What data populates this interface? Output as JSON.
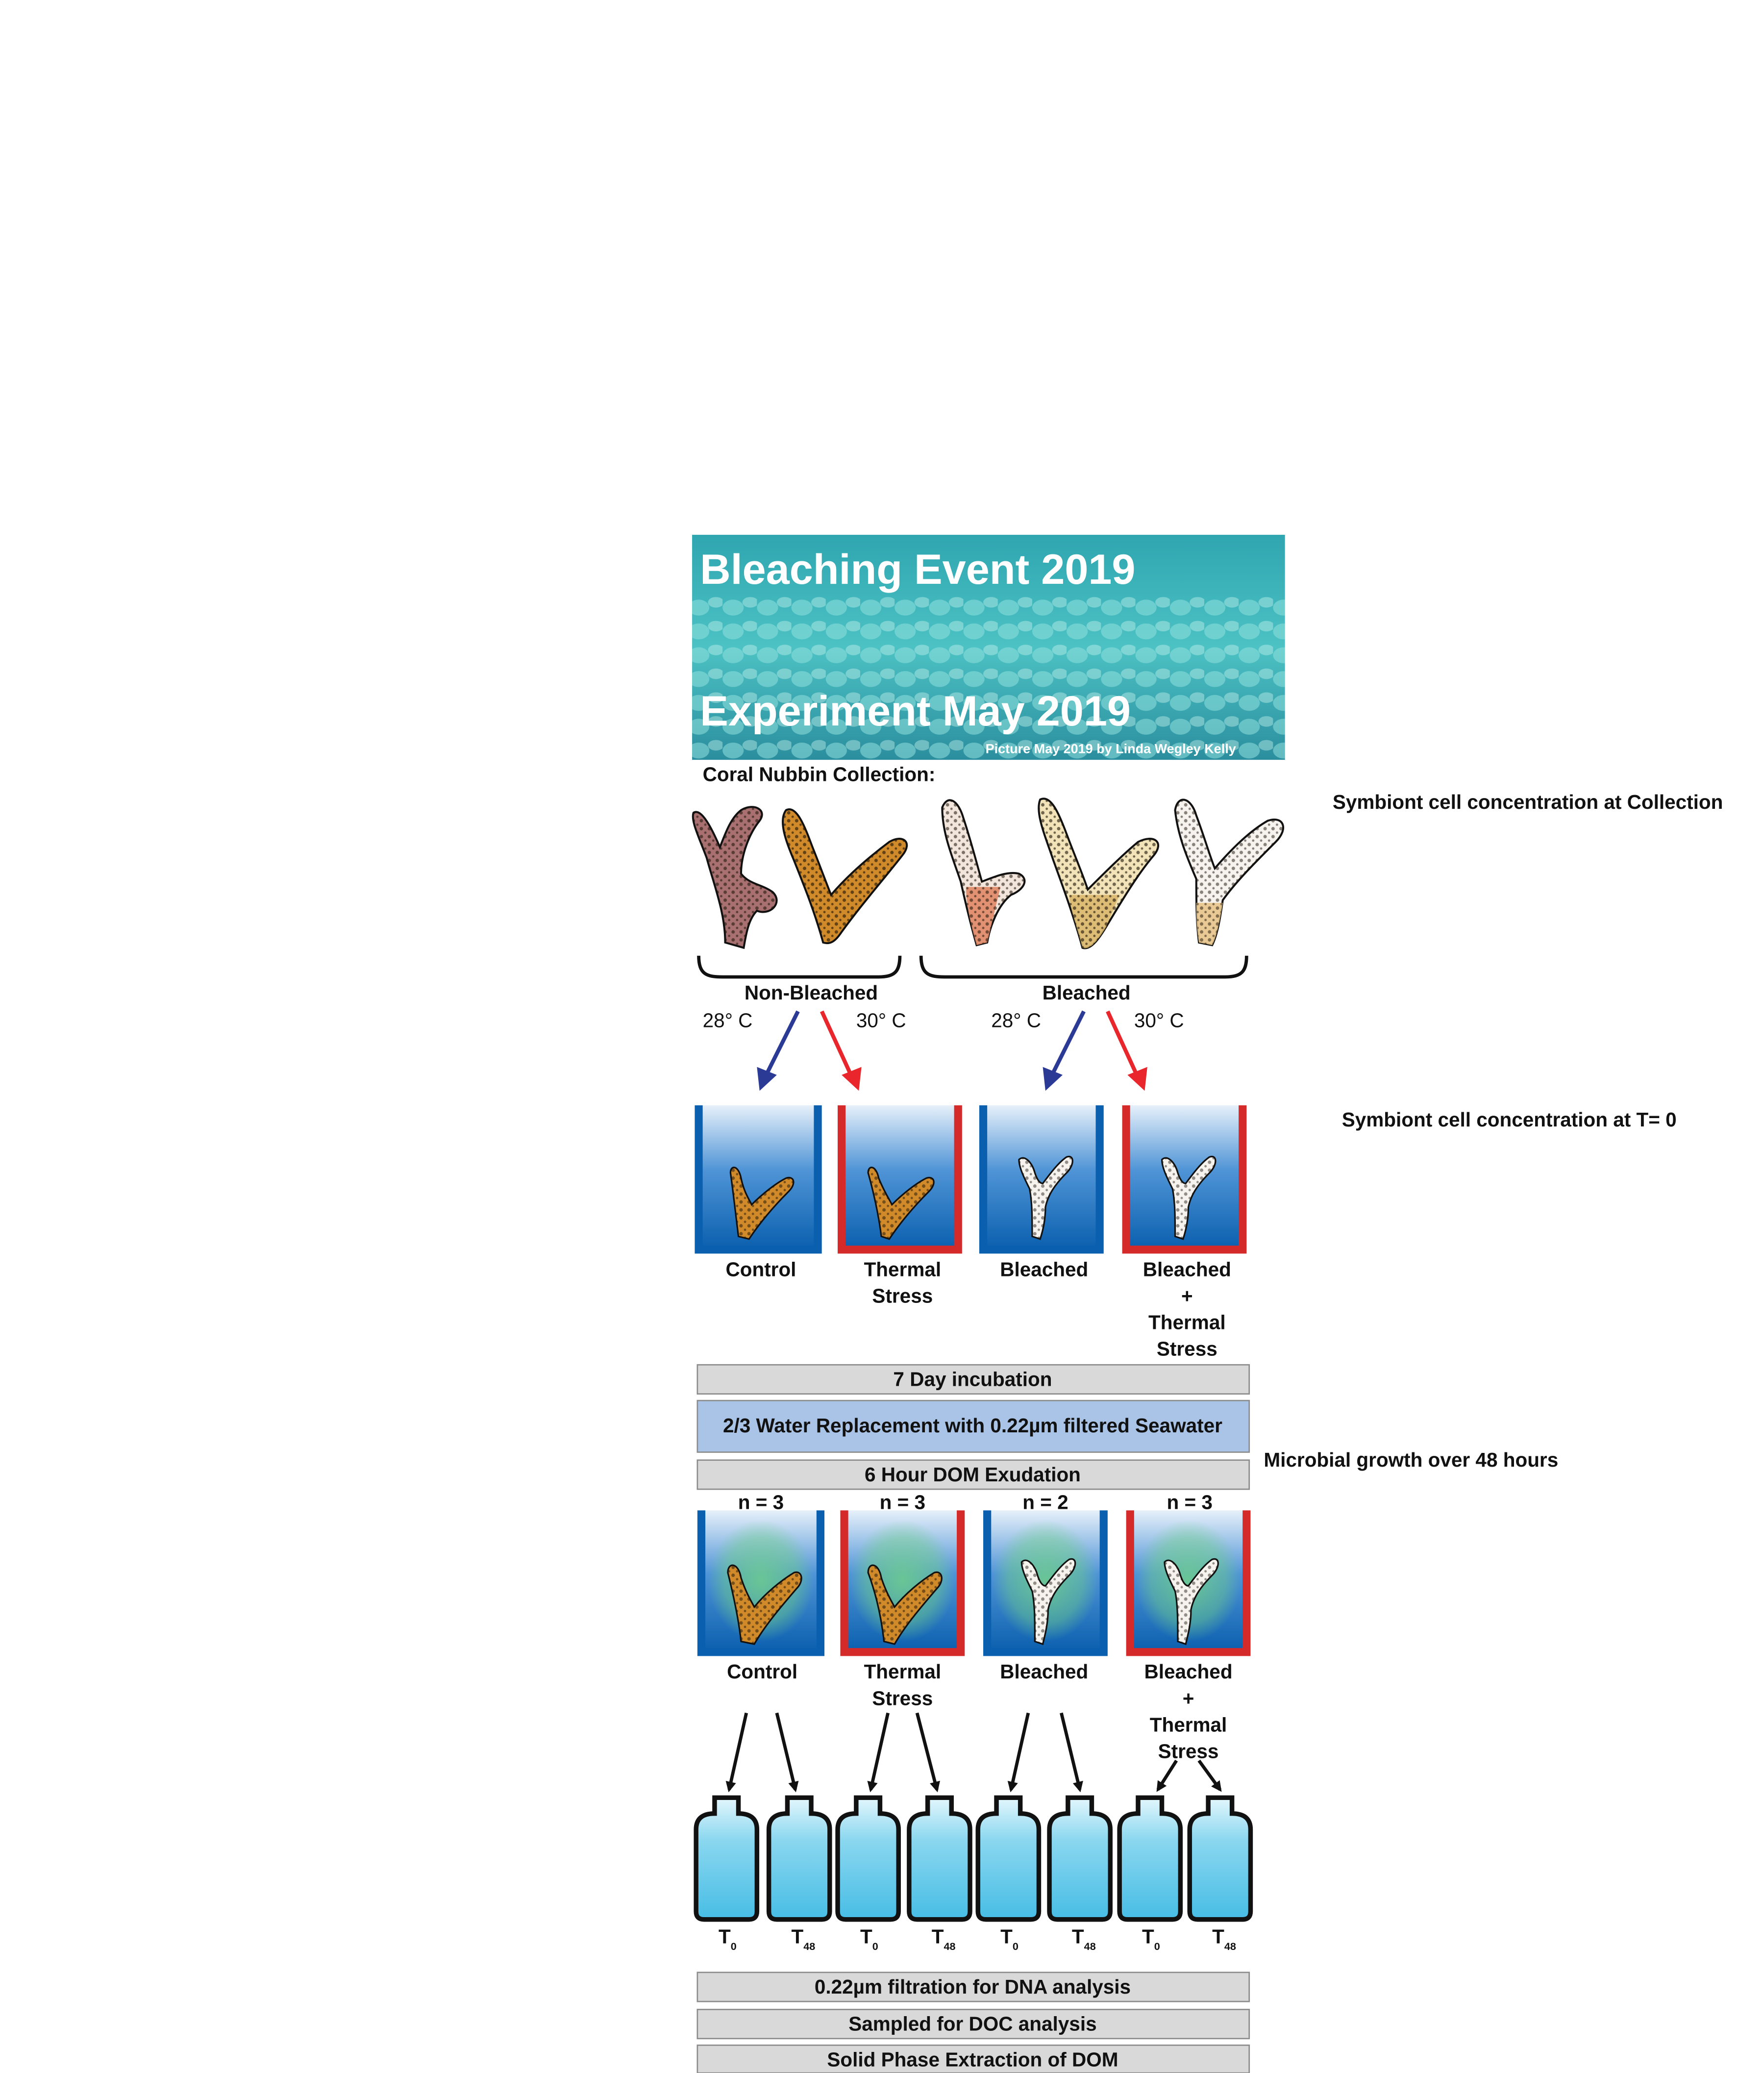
{
  "banner": {
    "title_line1": "Bleaching Event 2019",
    "title_line2": "Experiment May 2019",
    "credit": "Picture May 2019 by Linda Wegley Kelly"
  },
  "collection": {
    "heading": "Coral Nubbin Collection:",
    "group_nonbleached": "Non-Bleached",
    "group_bleached": "Bleached",
    "temp_low": "28° C",
    "temp_high": "30° C"
  },
  "side_notes": {
    "collection": "Symbiont cell concentration at Collection",
    "t0": "Symbiont cell concentration at T= 0",
    "microbial": "Microbial growth over 48 hours"
  },
  "treatments": [
    {
      "lines": [
        "Control"
      ],
      "n": "n = 3"
    },
    {
      "lines": [
        "Thermal",
        "Stress"
      ],
      "n": "n = 3"
    },
    {
      "lines": [
        "Bleached"
      ],
      "n": "n = 2"
    },
    {
      "lines": [
        "Bleached",
        "+",
        "Thermal",
        "Stress"
      ],
      "n": "n = 3"
    }
  ],
  "steps": {
    "incubation": "7 Day incubation",
    "replacement": "2/3 Water Replacement with 0.22µm filtered Seawater",
    "exudation": "6 Hour DOM Exudation"
  },
  "bottles": {
    "t0_main": "T",
    "t0_sub": "0",
    "t48_main": "T",
    "t48_sub": "48"
  },
  "final_steps": [
    "0.22µm filtration for DNA analysis",
    "Sampled for DOC analysis",
    "Solid Phase Extraction of DOM"
  ],
  "colors": {
    "water_blue": "#0a6cb8",
    "thermal_red": "#d42a2a",
    "arrow_blue": "#2b3a94",
    "arrow_red": "#e8262c",
    "box_gray": "#d9d9d9",
    "box_blue": "#a9c4e6",
    "bottle_fill": "#5cc3e6",
    "coral_nonbleached": "#c88a2a",
    "coral_bleached": "#f5f0e6"
  }
}
